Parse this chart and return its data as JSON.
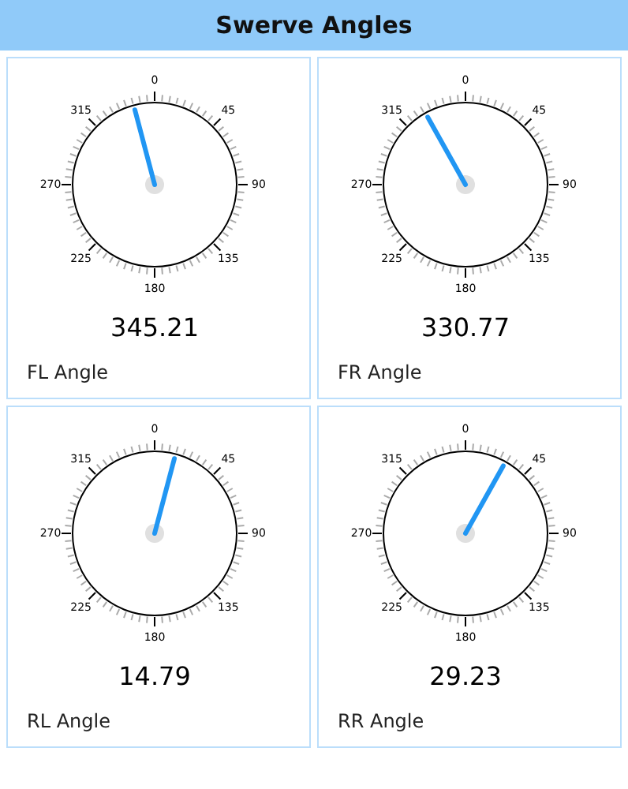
{
  "chart_data": [
    {
      "type": "other",
      "title": "Swerve Angles"
    },
    {
      "type": "other",
      "title": "FL Angle",
      "values": [
        345.21
      ],
      "color": "#2196f3",
      "data_labels": true,
      "annotations": [
        "0",
        "45",
        "90",
        "135",
        "180",
        "225",
        "270",
        "315"
      ]
    },
    {
      "type": "other",
      "title": "FR Angle",
      "values": [
        330.77
      ],
      "color": "#2196f3",
      "data_labels": true,
      "annotations": [
        "0",
        "45",
        "90",
        "135",
        "180",
        "225",
        "270",
        "315"
      ]
    },
    {
      "type": "other",
      "title": "RL Angle",
      "values": [
        14.79
      ],
      "color": "#2196f3",
      "data_labels": true,
      "annotations": [
        "0",
        "45",
        "90",
        "135",
        "180",
        "225",
        "270",
        "315"
      ]
    },
    {
      "type": "other",
      "title": "RR Angle",
      "values": [
        29.23
      ],
      "color": "#2196f3",
      "data_labels": true,
      "annotations": [
        "0",
        "45",
        "90",
        "135",
        "180",
        "225",
        "270",
        "315"
      ]
    }
  ]
}
